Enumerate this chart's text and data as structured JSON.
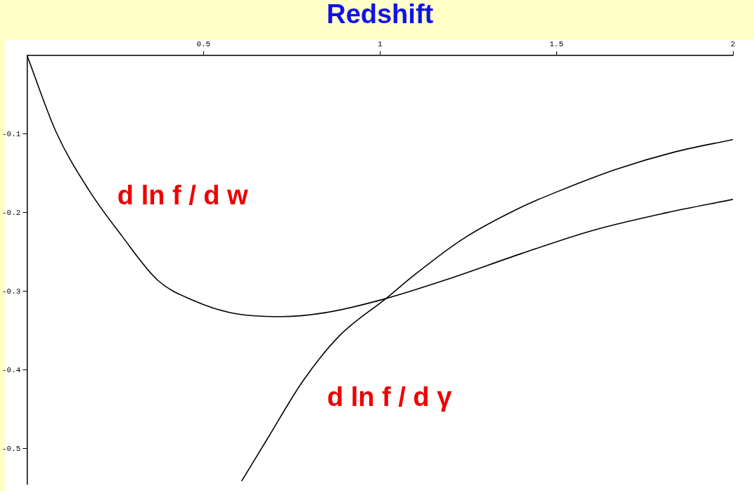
{
  "chart_data": {
    "type": "line",
    "xlabel": "Redshift",
    "xlim": [
      0,
      2
    ],
    "xticks": [
      0.5,
      1,
      1.5,
      2
    ],
    "ylim": [
      -0.545,
      0
    ],
    "yticks": [
      -0.1,
      -0.2,
      -0.3,
      -0.4,
      -0.5
    ],
    "grid": false,
    "legend": false,
    "marker": "none",
    "series": [
      {
        "color": "#000000",
        "x": [
          0,
          0.082,
          0.175,
          0.268,
          0.371,
          0.474,
          0.577,
          0.72,
          0.845,
          1.009,
          1.195,
          1.4,
          1.607,
          1.812,
          2.0
        ],
        "values": [
          0,
          -0.097,
          -0.171,
          -0.229,
          -0.286,
          -0.312,
          -0.327,
          -0.332,
          -0.327,
          -0.31,
          -0.284,
          -0.252,
          -0.222,
          -0.2,
          -0.183
        ]
      },
      {
        "color": "#000000",
        "x": [
          0.608,
          0.68,
          0.783,
          0.886,
          1.02,
          1.092,
          1.236,
          1.4,
          1.504,
          1.668,
          1.833,
          2.0
        ],
        "values": [
          -0.541,
          -0.488,
          -0.413,
          -0.356,
          -0.308,
          -0.281,
          -0.233,
          -0.193,
          -0.173,
          -0.145,
          -0.123,
          -0.107
        ]
      }
    ],
    "annotations": [
      "d ln f / d w",
      "d ln f / d γ"
    ]
  }
}
